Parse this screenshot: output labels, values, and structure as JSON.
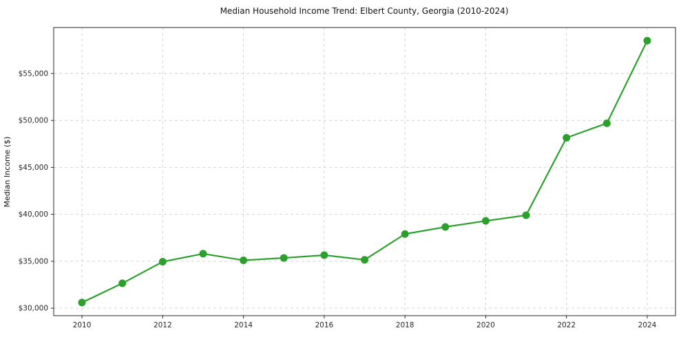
{
  "chart_data": {
    "type": "line",
    "title": "Median Household Income Trend: Elbert County, Georgia (2010-2024)",
    "xlabel": "",
    "ylabel": "Median Income ($)",
    "series_name": "Median Household Income",
    "x": [
      2010,
      2011,
      2012,
      2013,
      2014,
      2015,
      2016,
      2017,
      2018,
      2019,
      2020,
      2021,
      2022,
      2023,
      2024
    ],
    "values": [
      30600,
      32650,
      34950,
      35800,
      35100,
      35350,
      35650,
      35150,
      37900,
      38650,
      39300,
      39900,
      48150,
      49700,
      58500
    ],
    "xlim": [
      2009.3,
      2024.7
    ],
    "ylim": [
      29200,
      59900
    ],
    "xticks": [
      2010,
      2012,
      2014,
      2016,
      2018,
      2020,
      2022,
      2024
    ],
    "xtick_labels": [
      "2010",
      "2012",
      "2014",
      "2016",
      "2018",
      "2020",
      "2022",
      "2024"
    ],
    "yticks": [
      30000,
      35000,
      40000,
      45000,
      50000,
      55000
    ],
    "ytick_labels": [
      "$30,000",
      "$35,000",
      "$40,000",
      "$45,000",
      "$50,000",
      "$55,000"
    ],
    "grid": true,
    "grid_style": "dashed",
    "legend_position": "none",
    "line_color": "#2ca02c",
    "marker": "circle",
    "background_color": "#ffffff"
  }
}
